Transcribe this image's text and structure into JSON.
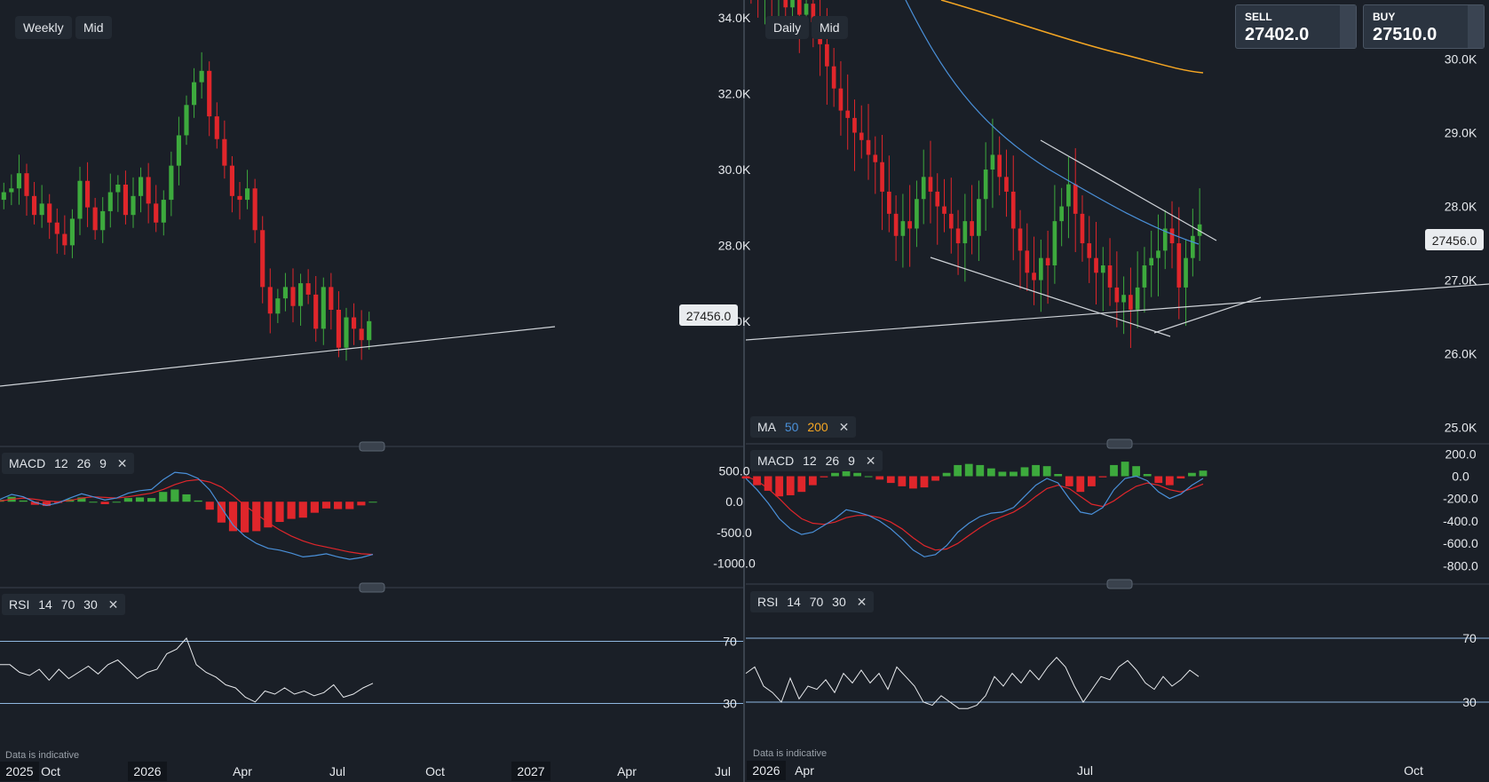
{
  "left_panel": {
    "timeframe_label": "Weekly",
    "price_type_label": "Mid",
    "price_axis": [
      "34.0K",
      "32.0K",
      "30.0K",
      "28.0K",
      "26.0K"
    ],
    "price_tag": "27456.0",
    "macd": {
      "label": "MACD",
      "params": [
        "12",
        "26",
        "9"
      ],
      "axis": [
        "500.0",
        "0.0",
        "-500.0",
        "-1000.0"
      ]
    },
    "rsi": {
      "label": "RSI",
      "params": [
        "14",
        "70",
        "30"
      ],
      "axis": [
        "70",
        "30"
      ]
    },
    "x_axis": [
      "2025",
      "Oct",
      "2026",
      "Apr",
      "Jul",
      "Oct",
      "2027",
      "Apr",
      "Jul"
    ],
    "note": "Data is indicative"
  },
  "right_panel": {
    "timeframe_label": "Daily",
    "price_type_label": "Mid",
    "sell": {
      "label": "SELL",
      "value": "27402.0"
    },
    "buy": {
      "label": "BUY",
      "value": "27510.0"
    },
    "price_axis": [
      "30.0K",
      "29.0K",
      "28.0K",
      "27.0K",
      "26.0K",
      "25.0K"
    ],
    "price_tag": "27456.0",
    "ma": {
      "label": "MA",
      "periods": [
        "50",
        "200"
      ],
      "colors": [
        "#4a90d9",
        "#f5a623"
      ]
    },
    "macd": {
      "label": "MACD",
      "params": [
        "12",
        "26",
        "9"
      ],
      "axis": [
        "200.0",
        "0.0",
        "-200.0",
        "-400.0",
        "-600.0",
        "-800.0"
      ]
    },
    "rsi": {
      "label": "RSI",
      "params": [
        "14",
        "70",
        "30"
      ],
      "axis": [
        "70",
        "30"
      ]
    },
    "x_axis": [
      "2026",
      "Apr",
      "Jul",
      "Oct"
    ],
    "note": "Data is indicative"
  },
  "colors": {
    "bull": "#3daa3d",
    "bear": "#e0262b",
    "macd_line": "#4a90d9",
    "signal_line": "#e0262b",
    "bg": "#1a1f27"
  },
  "chart_data": [
    {
      "type": "candlestick",
      "timeframe": "Weekly",
      "ylim": [
        24500,
        35500
      ],
      "x_ticks": [
        "2025",
        "Oct",
        "2026",
        "Apr",
        "Jul",
        "Oct",
        "2027",
        "Apr",
        "Jul"
      ],
      "last_price": 27456.0,
      "closes": [
        30900,
        31000,
        31400,
        30800,
        30300,
        30600,
        30100,
        29800,
        29500,
        30200,
        31200,
        30500,
        29900,
        30400,
        30900,
        31100,
        30300,
        30800,
        31300,
        30600,
        30100,
        30700,
        31600,
        32400,
        33200,
        33800,
        34100,
        32900,
        32300,
        31600,
        30800,
        30700,
        31000,
        29900,
        28400,
        27700,
        28100,
        28400,
        27900,
        28500,
        28200,
        27300,
        28400,
        27800,
        26800,
        27600,
        27300,
        27000,
        27500
      ]
    },
    {
      "type": "candlestick",
      "timeframe": "Daily",
      "ylim": [
        24600,
        30500
      ],
      "x_ticks": [
        "2026",
        "Apr",
        "Jul",
        "Oct"
      ],
      "last_price": 27456.0,
      "closes": [
        30700,
        30600,
        30750,
        30500,
        30650,
        30400,
        30500,
        30300,
        30450,
        30200,
        29900,
        29600,
        29300,
        29000,
        28900,
        28700,
        28600,
        28400,
        28300,
        27900,
        27600,
        27300,
        27500,
        27400,
        27800,
        28100,
        27900,
        27700,
        27600,
        27400,
        27200,
        27500,
        27300,
        27800,
        28200,
        28400,
        28100,
        27900,
        27400,
        27100,
        26800,
        26700,
        27000,
        26900,
        27500,
        27700,
        28000,
        27600,
        27200,
        27000,
        26800,
        26900,
        26600,
        26400,
        26500,
        26300,
        26600,
        26900,
        27000,
        27100,
        27400,
        27200,
        26600,
        27000,
        27300,
        27456
      ]
    },
    {
      "type": "line",
      "name": "MACD",
      "params": [
        12,
        26,
        9
      ],
      "panel": "Weekly",
      "ylim": [
        -1300,
        800
      ],
      "macd": [
        40,
        120,
        80,
        -10,
        -60,
        -20,
        60,
        130,
        80,
        30,
        60,
        140,
        180,
        200,
        360,
        480,
        460,
        380,
        190,
        -100,
        -380,
        -560,
        -680,
        -760,
        -790,
        -840,
        -900,
        -880,
        -850,
        -900,
        -940,
        -910,
        -860
      ],
      "signal": [
        10,
        40,
        60,
        40,
        10,
        0,
        20,
        60,
        80,
        70,
        60,
        80,
        110,
        140,
        200,
        280,
        340,
        360,
        320,
        240,
        100,
        -60,
        -200,
        -340,
        -460,
        -560,
        -640,
        -700,
        -740,
        -780,
        -820,
        -850,
        -860
      ]
    },
    {
      "type": "line",
      "name": "MACD",
      "params": [
        12,
        26,
        9
      ],
      "panel": "Daily",
      "ylim": [
        -900,
        250
      ],
      "macd": [
        -20,
        -120,
        -240,
        -380,
        -470,
        -520,
        -500,
        -440,
        -380,
        -300,
        -320,
        -350,
        -400,
        -470,
        -560,
        -660,
        -720,
        -700,
        -620,
        -500,
        -420,
        -360,
        -330,
        -320,
        -280,
        -180,
        -80,
        -20,
        -60,
        -200,
        -320,
        -340,
        -280,
        -120,
        -20,
        0,
        -40,
        -140,
        -200,
        -160,
        -80,
        -20
      ],
      "signal": [
        0,
        -40,
        -110,
        -200,
        -300,
        -380,
        -420,
        -430,
        -410,
        -370,
        -350,
        -350,
        -370,
        -410,
        -470,
        -550,
        -620,
        -660,
        -650,
        -600,
        -530,
        -460,
        -400,
        -360,
        -320,
        -260,
        -180,
        -110,
        -80,
        -110,
        -180,
        -250,
        -270,
        -220,
        -150,
        -90,
        -60,
        -80,
        -120,
        -140,
        -110,
        -70
      ]
    },
    {
      "type": "line",
      "name": "RSI",
      "params": [
        14,
        70,
        30
      ],
      "panel": "Weekly",
      "ylim": [
        0,
        100
      ],
      "values": [
        55,
        55,
        50,
        48,
        52,
        45,
        52,
        46,
        50,
        54,
        49,
        55,
        58,
        52,
        46,
        50,
        52,
        62,
        65,
        72,
        55,
        50,
        47,
        42,
        40,
        34,
        31,
        38,
        36,
        40,
        36,
        38,
        35,
        37,
        42,
        34,
        36,
        40,
        43
      ]
    },
    {
      "type": "line",
      "name": "RSI",
      "params": [
        14,
        70,
        30
      ],
      "panel": "Daily",
      "ylim": [
        0,
        100
      ],
      "values": [
        48,
        52,
        40,
        36,
        30,
        45,
        32,
        40,
        38,
        44,
        36,
        48,
        42,
        50,
        42,
        48,
        38,
        52,
        46,
        40,
        30,
        28,
        34,
        30,
        26,
        26,
        28,
        34,
        46,
        40,
        48,
        42,
        50,
        44,
        52,
        58,
        52,
        40,
        30,
        38,
        46,
        44,
        52,
        56,
        50,
        42,
        38,
        46,
        40,
        44,
        50,
        46
      ]
    }
  ]
}
